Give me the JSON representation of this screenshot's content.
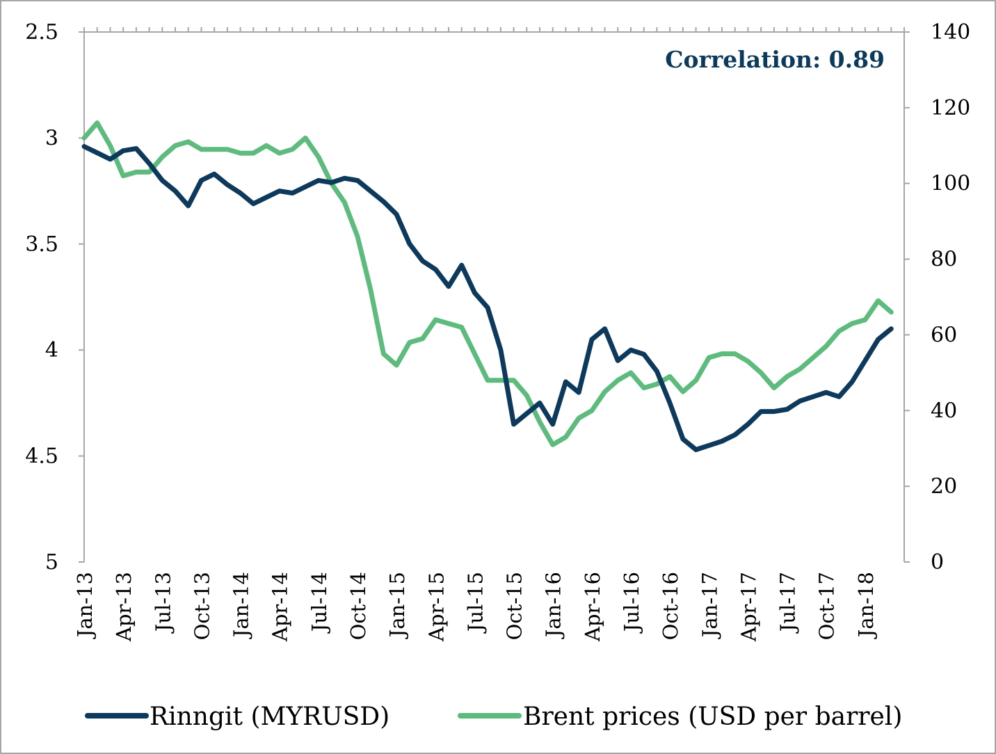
{
  "chart_data": {
    "type": "line",
    "title": "",
    "annotation": "Correlation: 0.89",
    "x_tick_labels": [
      "Jan-13",
      "Apr-13",
      "Jul-13",
      "Oct-13",
      "Jan-14",
      "Apr-14",
      "Jul-14",
      "Oct-14",
      "Jan-15",
      "Apr-15",
      "Jul-15",
      "Oct-15",
      "Jan-16",
      "Apr-16",
      "Jul-16",
      "Oct-16",
      "Jan-17",
      "Apr-17",
      "Jul-17",
      "Oct-17",
      "Jan-18"
    ],
    "x_range": [
      "Jan-13",
      "Mar-18"
    ],
    "left_axis": {
      "min": 2.5,
      "max": 5,
      "inverted": true,
      "ticks": [
        2.5,
        3,
        3.5,
        4,
        4.5,
        5
      ],
      "tick_labels": [
        "2.5",
        "3",
        "3.5",
        "4",
        "4.5",
        "5"
      ]
    },
    "right_axis": {
      "min": 0,
      "max": 140,
      "inverted": false,
      "ticks": [
        0,
        20,
        40,
        60,
        80,
        100,
        120,
        140
      ],
      "tick_labels": [
        "0",
        "20",
        "40",
        "60",
        "80",
        "100",
        "120",
        "140"
      ]
    },
    "grid": false,
    "legend_position": "bottom",
    "colors": {
      "ringgit": "#0d3a5c",
      "brent": "#5dbb7e",
      "axis": "#a6a6a6",
      "annotation": "#0d3a5c"
    },
    "series": [
      {
        "name": "Rinngit (MYRUSD)",
        "axis": "left",
        "x_month_index": [
          0,
          1,
          2,
          3,
          4,
          5,
          6,
          7,
          8,
          9,
          10,
          11,
          12,
          13,
          14,
          15,
          16,
          17,
          18,
          19,
          20,
          21,
          22,
          23,
          24,
          25,
          26,
          27,
          28,
          29,
          30,
          31,
          32,
          33,
          34,
          35,
          36,
          37,
          38,
          39,
          40,
          41,
          42,
          43,
          44,
          45,
          46,
          47,
          48,
          49,
          50,
          51,
          52,
          53,
          54,
          55,
          56,
          57,
          58,
          59,
          60,
          61,
          62
        ],
        "values": [
          3.04,
          3.07,
          3.1,
          3.06,
          3.05,
          3.12,
          3.2,
          3.25,
          3.32,
          3.2,
          3.17,
          3.22,
          3.26,
          3.31,
          3.28,
          3.25,
          3.26,
          3.23,
          3.2,
          3.21,
          3.19,
          3.2,
          3.25,
          3.3,
          3.36,
          3.5,
          3.58,
          3.62,
          3.7,
          3.6,
          3.73,
          3.8,
          4.0,
          4.35,
          4.3,
          4.25,
          4.35,
          4.15,
          4.2,
          3.95,
          3.9,
          4.05,
          4.0,
          4.02,
          4.1,
          4.25,
          4.42,
          4.47,
          4.45,
          4.43,
          4.4,
          4.35,
          4.29,
          4.29,
          4.28,
          4.24,
          4.22,
          4.2,
          4.22,
          4.15,
          4.05,
          3.95,
          3.9
        ]
      },
      {
        "name": "Brent prices (USD per barrel)",
        "axis": "right",
        "x_month_index": [
          0,
          1,
          2,
          3,
          4,
          5,
          6,
          7,
          8,
          9,
          10,
          11,
          12,
          13,
          14,
          15,
          16,
          17,
          18,
          19,
          20,
          21,
          22,
          23,
          24,
          25,
          26,
          27,
          28,
          29,
          30,
          31,
          32,
          33,
          34,
          35,
          36,
          37,
          38,
          39,
          40,
          41,
          42,
          43,
          44,
          45,
          46,
          47,
          48,
          49,
          50,
          51,
          52,
          53,
          54,
          55,
          56,
          57,
          58,
          59,
          60,
          61,
          62
        ],
        "values": [
          112,
          116,
          110,
          102,
          103,
          103,
          107,
          110,
          111,
          109,
          109,
          109,
          108,
          108,
          110,
          108,
          109,
          112,
          107,
          100,
          95,
          86,
          72,
          55,
          52,
          58,
          59,
          64,
          63,
          62,
          55,
          48,
          48,
          48,
          44,
          37,
          31,
          33,
          38,
          40,
          45,
          48,
          50,
          46,
          47,
          49,
          45,
          48,
          54,
          55,
          55,
          53,
          50,
          46,
          49,
          51,
          54,
          57,
          61,
          63,
          64,
          69,
          66
        ]
      }
    ]
  }
}
